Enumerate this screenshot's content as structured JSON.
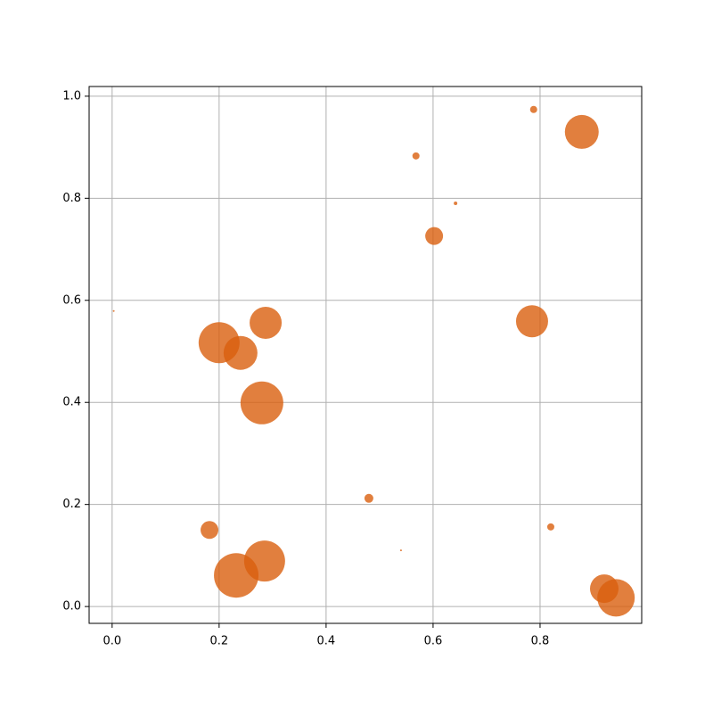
{
  "chart_data": {
    "type": "scatter",
    "x": [
      0.788,
      0.878,
      0.568,
      0.642,
      0.602,
      0.003,
      0.785,
      0.287,
      0.2,
      0.24,
      0.28,
      0.48,
      0.182,
      0.82,
      0.54,
      0.285,
      0.232,
      0.92,
      0.942
    ],
    "y": [
      0.974,
      0.93,
      0.883,
      0.79,
      0.726,
      0.579,
      0.559,
      0.556,
      0.517,
      0.497,
      0.399,
      0.212,
      0.15,
      0.156,
      0.11,
      0.089,
      0.061,
      0.035,
      0.017
    ],
    "sizes": [
      64,
      1444,
      64,
      16,
      400,
      4,
      1296,
      1296,
      2116,
      1444,
      2304,
      100,
      400,
      64,
      4,
      2116,
      2500,
      1024,
      1764
    ],
    "color": "#d95f0e",
    "xlim": [
      -0.043,
      0.99
    ],
    "ylim": [
      -0.033,
      1.019
    ],
    "xticks": [
      {
        "value": 0,
        "label": "0.0"
      },
      0.2,
      0.4,
      0.6,
      0.8
    ],
    "yticks": [
      {
        "value": 0,
        "label": "0.0"
      },
      0.2,
      0.4,
      0.6,
      0.8,
      {
        "value": 1,
        "label": "1.0"
      }
    ],
    "grid": true
  }
}
